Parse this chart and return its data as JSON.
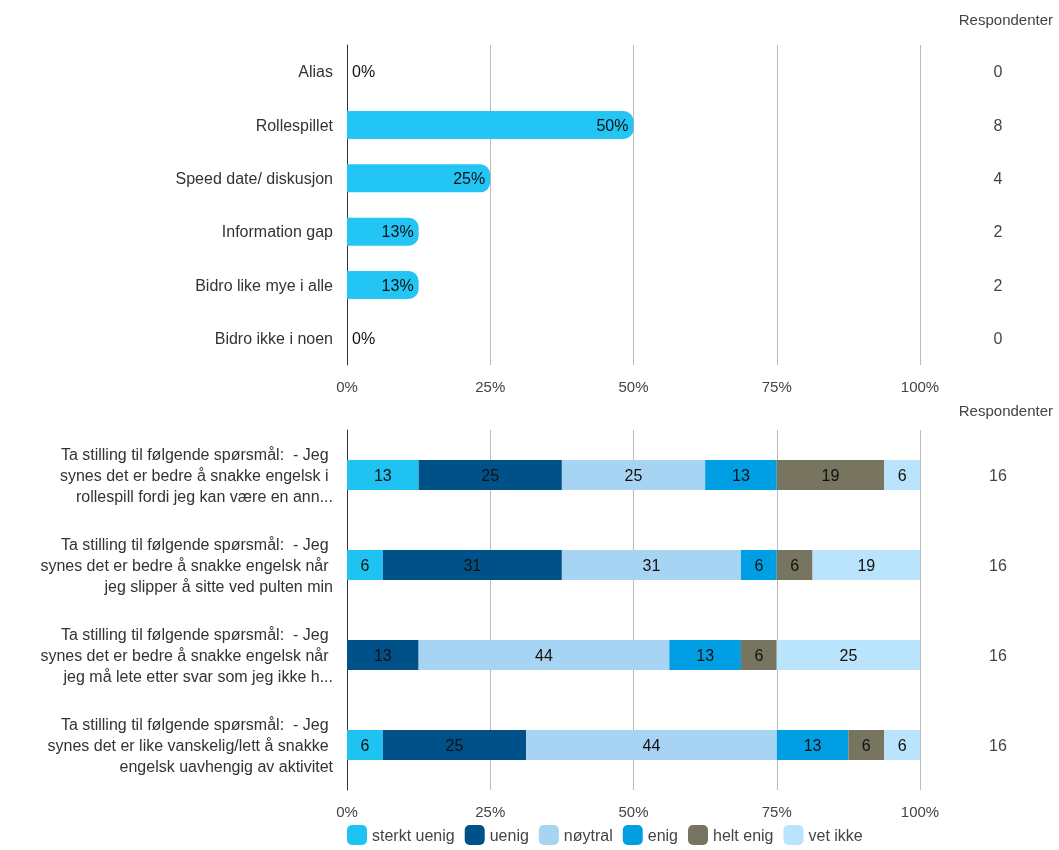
{
  "chart_data": [
    {
      "type": "bar",
      "orientation": "horizontal",
      "categories": [
        "Alias",
        "Rollespillet",
        "Speed date/ diskusjon",
        "Information gap",
        "Bidro like mye i alle",
        "Bidro ikke i noen"
      ],
      "values": [
        0,
        50,
        25,
        12.5,
        12.5,
        0
      ],
      "color": "#22c5f4",
      "value_labels": [
        "0%",
        "50%",
        "25%",
        "13%",
        "13%",
        "0%"
      ],
      "xlim": [
        0,
        100
      ],
      "xticks": [
        {
          "value": 0,
          "label": "0%"
        },
        {
          "value": 25,
          "label": "25%"
        },
        {
          "value": 50,
          "label": "50%"
        },
        {
          "value": 75,
          "label": "75%"
        },
        {
          "value": 100,
          "label": "100%"
        }
      ],
      "grid": "x",
      "legend": false,
      "annotations": [
        "Respondenter",
        "0",
        "8",
        "4",
        "2",
        "2",
        "0"
      ]
    },
    {
      "type": "bar",
      "orientation": "horizontal",
      "stacked": true,
      "categories": [
        "Ta stilling til følgende spørsmål:  - Jeg synes det er bedre å snakke engelsk i rollespill fordi jeg kan være en ann...",
        "Ta stilling til følgende spørsmål:  - Jeg synes det er bedre å snakke engelsk når jeg slipper å sitte ved pulten min",
        "Ta stilling til følgende spørsmål:  - Jeg synes det er bedre å snakke engelsk når jeg må lete etter svar som jeg ikke h...",
        "Ta stilling til følgende spørsmål:  - Jeg synes det er like vanskelig/lett å snakke engelsk uavhengig av aktivitet"
      ],
      "series": [
        {
          "name": "sterkt uenig",
          "color": "#1fc3f2",
          "values": [
            12.5,
            6.25,
            null,
            6.25
          ],
          "value_labels": [
            "13",
            "6",
            null,
            "6"
          ]
        },
        {
          "name": "uenig",
          "color": "#00518a",
          "values": [
            25,
            31.25,
            12.5,
            25
          ],
          "value_labels": [
            "25",
            "31",
            "13",
            "25"
          ]
        },
        {
          "name": "nøytral",
          "color": "#a8d4f4",
          "values": [
            25,
            31.25,
            43.75,
            43.75
          ],
          "value_labels": [
            "25",
            "31",
            "44",
            "44"
          ]
        },
        {
          "name": "enig",
          "color": "#009fe3",
          "values": [
            12.5,
            6.25,
            12.5,
            12.5
          ],
          "value_labels": [
            "13",
            "6",
            "13",
            "13"
          ]
        },
        {
          "name": "helt enig",
          "color": "#77745f",
          "values": [
            18.75,
            6.25,
            6.25,
            6.25
          ],
          "value_labels": [
            "19",
            "6",
            "6",
            "6"
          ]
        },
        {
          "name": "vet ikke",
          "color": "#b9e4fb",
          "values": [
            6.25,
            18.75,
            25,
            6.25
          ],
          "value_labels": [
            "6",
            "19",
            "25",
            "6"
          ]
        }
      ],
      "xlim": [
        0,
        100
      ],
      "xticks": [
        {
          "value": 0,
          "label": "0%"
        },
        {
          "value": 25,
          "label": "25%"
        },
        {
          "value": 50,
          "label": "50%"
        },
        {
          "value": 75,
          "label": "75%"
        },
        {
          "value": 100,
          "label": "100%"
        }
      ],
      "grid": "x",
      "legend": "bottom",
      "annotations": [
        "Respondenter",
        "16",
        "16",
        "16",
        "16"
      ]
    }
  ]
}
